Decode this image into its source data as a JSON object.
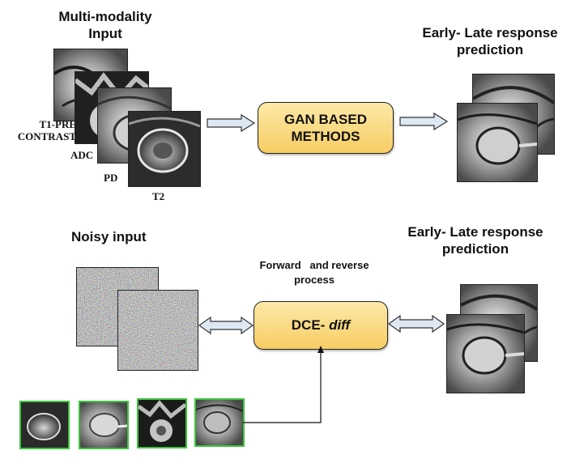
{
  "top": {
    "input_title_line1": "Multi-modality",
    "input_title_line2": "Input",
    "modalities": {
      "t1_line1": "T1-PRE",
      "t1_line2": "CONTRAST",
      "adc": "ADC",
      "pd": "PD",
      "t2": "T2"
    },
    "method_line1": "GAN BASED",
    "method_line2": "METHODS",
    "output_title_line1": "Early- Late response",
    "output_title_line2": "prediction"
  },
  "bottom": {
    "noisy_title": "Noisy input",
    "process_line1": "Forward   and reverse",
    "process_line2": "process",
    "model_prefix": "DCE-",
    "model_suffix": "diff",
    "output_title_line1": "Early- Late response",
    "output_title_line2": "prediction"
  },
  "colors": {
    "method_box": "#f7cd63",
    "arrow_fill": "#dde8f3",
    "thumb_border": "#3bc43b"
  }
}
